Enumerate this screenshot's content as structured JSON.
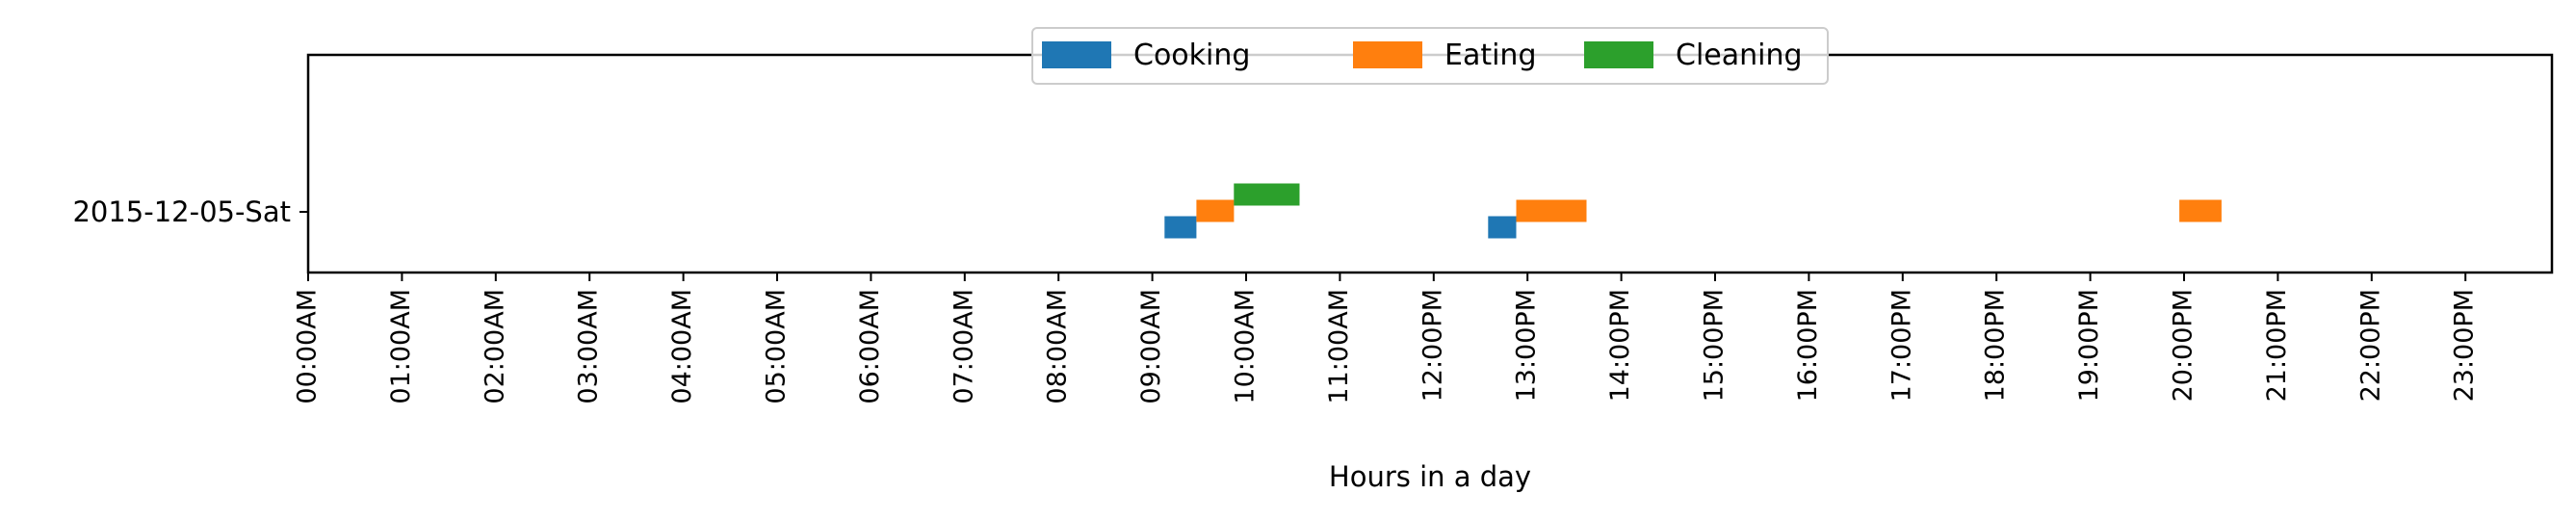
{
  "chart_data": {
    "type": "timeline",
    "xlabel": "Hours in a day",
    "ylabel": "",
    "xlim": [
      0,
      24
    ],
    "categories": [
      "2015-12-05-Sat"
    ],
    "x_ticks": [
      {
        "value": 0,
        "label": "00:00AM"
      },
      {
        "value": 1,
        "label": "01:00AM"
      },
      {
        "value": 2,
        "label": "02:00AM"
      },
      {
        "value": 3,
        "label": "03:00AM"
      },
      {
        "value": 4,
        "label": "04:00AM"
      },
      {
        "value": 5,
        "label": "05:00AM"
      },
      {
        "value": 6,
        "label": "06:00AM"
      },
      {
        "value": 7,
        "label": "07:00AM"
      },
      {
        "value": 8,
        "label": "08:00AM"
      },
      {
        "value": 9,
        "label": "09:00AM"
      },
      {
        "value": 10,
        "label": "10:00AM"
      },
      {
        "value": 11,
        "label": "11:00AM"
      },
      {
        "value": 12,
        "label": "12:00PM"
      },
      {
        "value": 13,
        "label": "13:00PM"
      },
      {
        "value": 14,
        "label": "14:00PM"
      },
      {
        "value": 15,
        "label": "15:00PM"
      },
      {
        "value": 16,
        "label": "16:00PM"
      },
      {
        "value": 17,
        "label": "17:00PM"
      },
      {
        "value": 18,
        "label": "18:00PM"
      },
      {
        "value": 19,
        "label": "19:00PM"
      },
      {
        "value": 20,
        "label": "20:00PM"
      },
      {
        "value": 21,
        "label": "21:00PM"
      },
      {
        "value": 22,
        "label": "22:00PM"
      },
      {
        "value": 23,
        "label": "23:00PM"
      }
    ],
    "legend_position": "top-center",
    "series": [
      {
        "name": "Cooking",
        "color": "#1f77b4",
        "level": "low",
        "intervals": [
          {
            "date": "2015-12-05-Sat",
            "start": 9.13,
            "end": 9.47
          },
          {
            "date": "2015-12-05-Sat",
            "start": 12.58,
            "end": 12.88
          }
        ]
      },
      {
        "name": "Eating",
        "color": "#ff7f0e",
        "level": "middle",
        "intervals": [
          {
            "date": "2015-12-05-Sat",
            "start": 9.47,
            "end": 9.87
          },
          {
            "date": "2015-12-05-Sat",
            "start": 12.88,
            "end": 13.63
          },
          {
            "date": "2015-12-05-Sat",
            "start": 19.95,
            "end": 20.4
          }
        ]
      },
      {
        "name": "Cleaning",
        "color": "#2ca02c",
        "level": "high",
        "intervals": [
          {
            "date": "2015-12-05-Sat",
            "start": 9.87,
            "end": 10.57
          }
        ]
      }
    ]
  }
}
